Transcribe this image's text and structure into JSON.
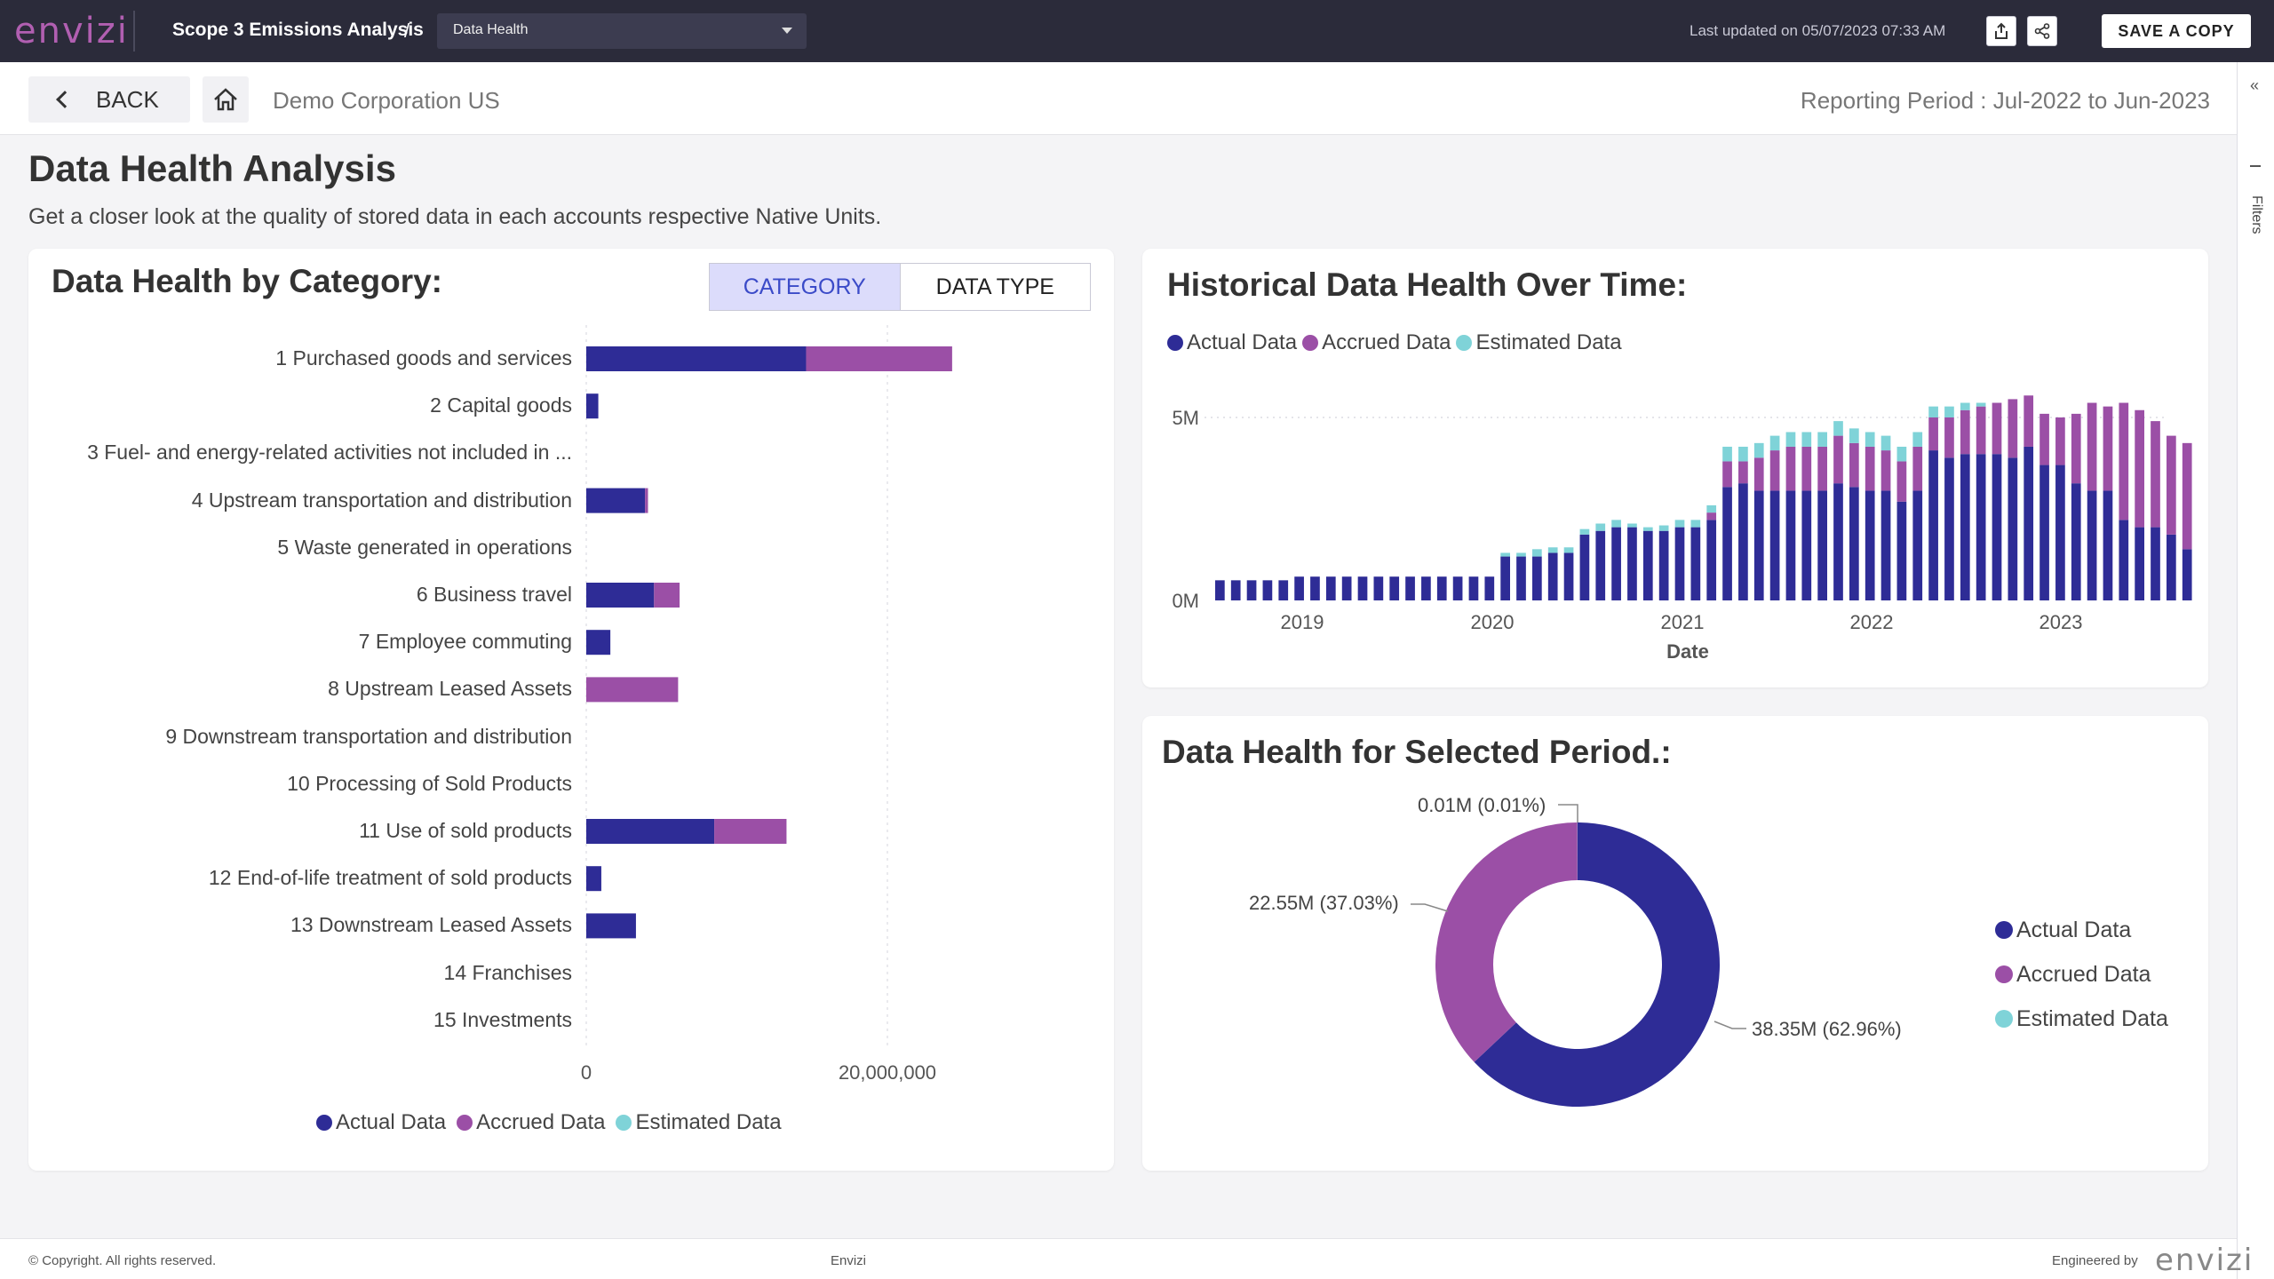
{
  "app": {
    "brand": "envizi",
    "report_title": "Scope 3 Emissions Analysis",
    "separator": "/",
    "page_select": "Data Health",
    "last_updated": "Last updated on 05/07/2023 07:33 AM",
    "save_copy": "SAVE A COPY"
  },
  "subheader": {
    "back_label": "BACK",
    "organization": "Demo Corporation US",
    "reporting_period": "Reporting Period : Jul-2022 to Jun-2023"
  },
  "filters_label": "Filters",
  "page": {
    "title": "Data Health Analysis",
    "subtitle": "Get a closer look at the quality of stored data in each accounts respective Native Units."
  },
  "colors": {
    "actual": "#2e2c96",
    "accrued": "#9b4fa6",
    "estimated": "#7fd3d8"
  },
  "category_card": {
    "title": "Data Health by Category:",
    "toggle": {
      "category": "CATEGORY",
      "data_type": "DATA TYPE",
      "selected": "CATEGORY"
    },
    "legend": [
      "Actual Data",
      "Accrued Data",
      "Estimated Data"
    ]
  },
  "history_card": {
    "title": "Historical Data Health Over Time:",
    "legend": [
      "Actual Data",
      "Accrued Data",
      "Estimated Data"
    ]
  },
  "donut_card": {
    "title": "Data Health for Selected Period.:",
    "legend": [
      "Actual Data",
      "Accrued Data",
      "Estimated Data"
    ],
    "labels": {
      "estimated": "0.01M (0.01%)",
      "accrued": "22.55M (37.03%)",
      "actual": "38.35M (62.96%)"
    }
  },
  "chart_data": [
    {
      "type": "bar",
      "orientation": "horizontal",
      "stacked": true,
      "title": "Data Health by Category:",
      "categories": [
        "1 Purchased goods and services",
        "2 Capital goods",
        "3 Fuel- and energy-related activities not included in ...",
        "4 Upstream transportation and distribution",
        "5 Waste generated in operations",
        "6 Business travel",
        "7 Employee commuting",
        "8 Upstream Leased Assets",
        "9 Downstream transportation and distribution",
        "10 Processing of Sold Products",
        "11 Use of sold products",
        "12 End-of-life treatment of sold products",
        "13 Downstream Leased Assets",
        "14 Franchises",
        "15 Investments"
      ],
      "series": [
        {
          "name": "Actual Data",
          "values": [
            14600000,
            800000,
            0,
            3900000,
            0,
            4500000,
            1600000,
            0,
            0,
            0,
            8500000,
            1000000,
            3300000,
            0,
            0
          ]
        },
        {
          "name": "Accrued Data",
          "values": [
            9700000,
            0,
            0,
            200000,
            0,
            1700000,
            0,
            6100000,
            0,
            0,
            4800000,
            0,
            0,
            0,
            0
          ]
        },
        {
          "name": "Estimated Data",
          "values": [
            0,
            0,
            0,
            0,
            0,
            0,
            0,
            0,
            0,
            0,
            0,
            0,
            0,
            0,
            0
          ]
        }
      ],
      "xlim": [
        0,
        30000000
      ],
      "xticks": [
        0,
        20000000
      ],
      "xtick_labels": [
        "0",
        "20,000,000"
      ],
      "grid": true,
      "legend_position": "bottom"
    },
    {
      "type": "bar",
      "stacked": true,
      "title": "Historical Data Health Over Time:",
      "xlabel": "Date",
      "x_start": "2018-07",
      "x_tick_labels": [
        "2019",
        "2020",
        "2021",
        "2022",
        "2023"
      ],
      "y_tick_labels": [
        "0M",
        "5M"
      ],
      "ylim": [
        0,
        5500000
      ],
      "series": [
        {
          "name": "Actual Data",
          "values": [
            550000,
            550000,
            550000,
            550000,
            550000,
            650000,
            650000,
            650000,
            650000,
            650000,
            650000,
            650000,
            650000,
            650000,
            650000,
            650000,
            650000,
            650000,
            1200000,
            1200000,
            1200000,
            1300000,
            1300000,
            1800000,
            1900000,
            2000000,
            2000000,
            1900000,
            1900000,
            2000000,
            2000000,
            2200000,
            3100000,
            3200000,
            3000000,
            3000000,
            3000000,
            3000000,
            3000000,
            3200000,
            3100000,
            3000000,
            3000000,
            2700000,
            3000000,
            4100000,
            3900000,
            4000000,
            4000000,
            4000000,
            3900000,
            4200000,
            3700000,
            3700000,
            3200000,
            3000000,
            3000000,
            2200000,
            2000000,
            2000000,
            1800000,
            1400000
          ]
        },
        {
          "name": "Accrued Data",
          "values": [
            0,
            0,
            0,
            0,
            0,
            0,
            0,
            0,
            0,
            0,
            0,
            0,
            0,
            0,
            0,
            0,
            0,
            0,
            0,
            0,
            0,
            0,
            0,
            0,
            0,
            0,
            0,
            0,
            0,
            0,
            0,
            200000,
            700000,
            600000,
            900000,
            1100000,
            1200000,
            1200000,
            1200000,
            1300000,
            1200000,
            1200000,
            1100000,
            1100000,
            1200000,
            900000,
            1100000,
            1200000,
            1300000,
            1400000,
            1600000,
            1400000,
            1400000,
            1300000,
            1900000,
            2400000,
            2300000,
            3200000,
            3200000,
            2900000,
            2700000,
            2900000
          ]
        },
        {
          "name": "Estimated Data",
          "values": [
            0,
            0,
            0,
            0,
            0,
            0,
            0,
            0,
            0,
            0,
            0,
            0,
            0,
            0,
            0,
            0,
            0,
            0,
            100000,
            100000,
            200000,
            150000,
            150000,
            150000,
            200000,
            200000,
            100000,
            100000,
            150000,
            200000,
            200000,
            200000,
            400000,
            400000,
            400000,
            400000,
            400000,
            400000,
            400000,
            400000,
            400000,
            400000,
            400000,
            400000,
            400000,
            300000,
            300000,
            200000,
            100000,
            0,
            0,
            0,
            0,
            0,
            0,
            0,
            0,
            0,
            0,
            0,
            0,
            0
          ]
        }
      ],
      "legend_position": "top-left",
      "grid": true
    },
    {
      "type": "pie",
      "donut": true,
      "title": "Data Health for Selected Period.:",
      "slices": [
        {
          "name": "Actual Data",
          "value": 38.35,
          "percent": 62.96,
          "label": "38.35M (62.96%)"
        },
        {
          "name": "Accrued Data",
          "value": 22.55,
          "percent": 37.03,
          "label": "22.55M (37.03%)"
        },
        {
          "name": "Estimated Data",
          "value": 0.01,
          "percent": 0.01,
          "label": "0.01M (0.01%)"
        }
      ],
      "legend_position": "right"
    }
  ],
  "footer": {
    "copyright": "© Copyright. All rights reserved.",
    "middle": "Envizi",
    "engineered_by": "Engineered by",
    "logo": "envizi"
  }
}
